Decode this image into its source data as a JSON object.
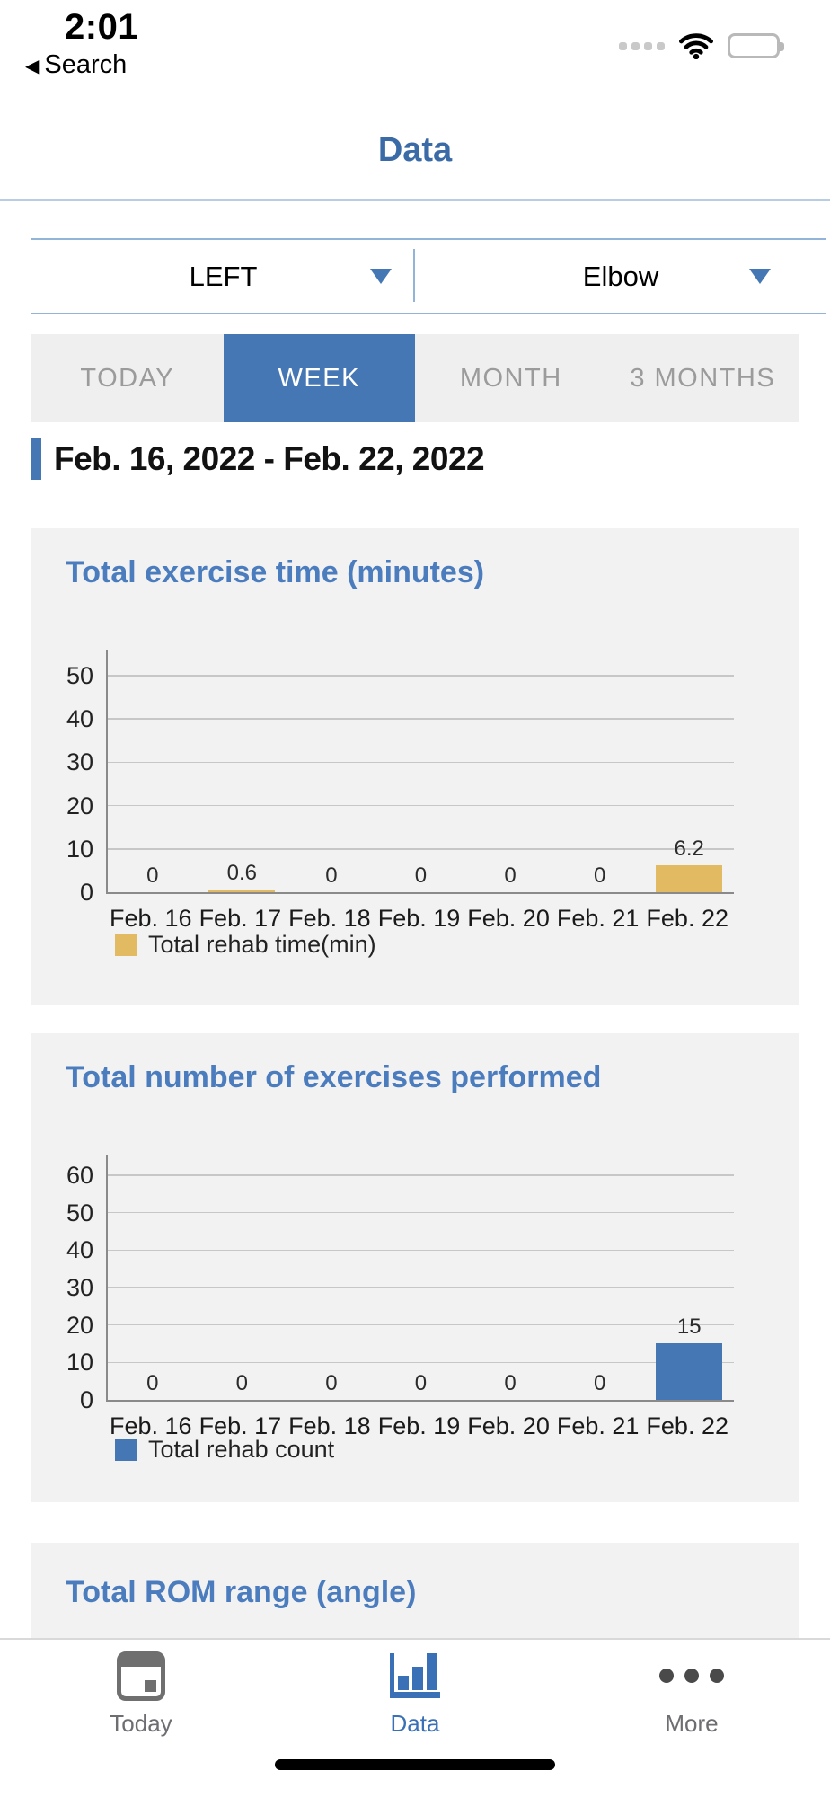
{
  "status_bar": {
    "time": "2:01",
    "back_app_label": "Search"
  },
  "icons": {
    "back_caret": "◀"
  },
  "header": {
    "title": "Data"
  },
  "selectors": {
    "side": {
      "value": "LEFT"
    },
    "joint": {
      "value": "Elbow"
    }
  },
  "range_tabs": [
    {
      "label": "TODAY",
      "active": false
    },
    {
      "label": "WEEK",
      "active": true
    },
    {
      "label": "MONTH",
      "active": false
    },
    {
      "label": "3 MONTHS",
      "active": false
    }
  ],
  "date_range": "Feb. 16, 2022 - Feb. 22, 2022",
  "chart_data": [
    {
      "type": "bar",
      "title": "Total exercise time (minutes)",
      "categories": [
        "Feb. 16",
        "Feb. 17",
        "Feb. 18",
        "Feb. 19",
        "Feb. 20",
        "Feb. 21",
        "Feb. 22"
      ],
      "values": [
        0,
        0.6,
        0,
        0,
        0,
        0,
        6.2
      ],
      "value_labels": [
        "0",
        "0.6",
        "0",
        "0",
        "0",
        "0",
        "6.2"
      ],
      "yticks": [
        0,
        10,
        20,
        30,
        40,
        50
      ],
      "ylim": [
        0,
        56
      ],
      "legend": "Total rehab time(min)",
      "bar_color": "#e2ba62",
      "grid": true,
      "legend_position": "bottom-left"
    },
    {
      "type": "bar",
      "title": "Total number of exercises performed",
      "categories": [
        "Feb. 16",
        "Feb. 17",
        "Feb. 18",
        "Feb. 19",
        "Feb. 20",
        "Feb. 21",
        "Feb. 22"
      ],
      "values": [
        0,
        0,
        0,
        0,
        0,
        0,
        15
      ],
      "value_labels": [
        "0",
        "0",
        "0",
        "0",
        "0",
        "0",
        "15"
      ],
      "yticks": [
        0,
        10,
        20,
        30,
        40,
        50,
        60
      ],
      "ylim": [
        0,
        65.5
      ],
      "legend": "Total rehab count",
      "bar_color": "#4577b5",
      "grid": true,
      "legend_position": "bottom-left"
    },
    {
      "type": "bar",
      "title": "Total ROM range (angle)"
    }
  ],
  "tab_bar": [
    {
      "label": "Today",
      "active": false
    },
    {
      "label": "Data",
      "active": true
    },
    {
      "label": "More",
      "active": false
    }
  ],
  "colors": {
    "accent_blue": "#4577b5",
    "title_blue": "#4a7cbe",
    "header_blue": "#3b6ba6",
    "gold_bar": "#e2ba62",
    "card_bg": "#f2f2f2",
    "filter_bg": "#efefef",
    "inactive_gray": "#9b9b9b",
    "rule_blue": "#92b4d8",
    "gridline": "#c7c7c7"
  }
}
